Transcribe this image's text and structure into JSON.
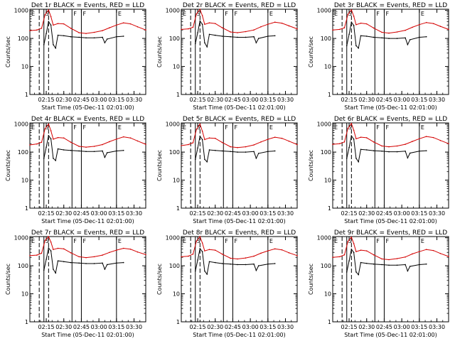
{
  "figure": {
    "y_axis_label": "Counts/sec",
    "x_axis_label": "Start Time (05-Dec-11 02:01:00)",
    "x_tick_labels": [
      "02:15",
      "02:30",
      "02:45",
      "03:00",
      "03:15",
      "03:30"
    ],
    "y_tick_labels": [
      "1",
      "10",
      "100",
      "1000"
    ],
    "event_markers": [
      "E",
      "S",
      "F",
      "F",
      "E"
    ],
    "colors": {
      "events": "#000000",
      "lld": "#d40000",
      "axes": "#000000"
    }
  },
  "chart_data": [
    {
      "type": "line",
      "title": "Det 1r BLACK = Events, RED = LLD",
      "xlabel": "Start Time (05-Dec-11 02:01:00)",
      "ylabel": "Counts/sec",
      "ylim": [
        1,
        1100
      ],
      "x_unit": "minutes after 02:01:00",
      "xlim": [
        0,
        99
      ],
      "y_scale": "log",
      "series": [
        {
          "name": "LLD",
          "x": [
            0,
            6,
            10,
            13,
            16,
            18,
            20,
            24,
            29,
            35,
            42,
            48,
            55,
            62,
            68,
            74,
            80,
            86,
            92,
            99
          ],
          "values": [
            190,
            200,
            230,
            700,
            1050,
            600,
            300,
            340,
            330,
            230,
            160,
            150,
            165,
            190,
            240,
            300,
            360,
            330,
            260,
            200
          ]
        },
        {
          "name": "Events",
          "x": [
            12,
            14,
            16,
            18,
            20,
            22,
            24,
            29,
            35,
            42,
            48,
            55,
            62,
            64,
            66,
            74,
            80
          ],
          "values": [
            60,
            150,
            400,
            300,
            60,
            45,
            130,
            125,
            115,
            110,
            105,
            105,
            110,
            70,
            95,
            115,
            120
          ]
        }
      ]
    },
    {
      "type": "line",
      "title": "Det 2r BLACK = Events, RED = LLD",
      "xlabel": "Start Time (05-Dec-11 02:01:00)",
      "ylabel": "Counts/sec",
      "ylim": [
        1,
        1100
      ],
      "x_unit": "minutes after 02:01:00",
      "xlim": [
        0,
        99
      ],
      "y_scale": "log",
      "series": [
        {
          "name": "LLD",
          "x": [
            0,
            6,
            10,
            13,
            16,
            18,
            20,
            24,
            29,
            35,
            42,
            48,
            55,
            62,
            68,
            74,
            80,
            86,
            92,
            99
          ],
          "values": [
            210,
            220,
            250,
            750,
            1100,
            650,
            320,
            360,
            340,
            240,
            170,
            160,
            175,
            200,
            260,
            320,
            380,
            350,
            280,
            220
          ]
        },
        {
          "name": "Events",
          "x": [
            12,
            14,
            16,
            18,
            20,
            22,
            24,
            29,
            35,
            42,
            48,
            55,
            62,
            64,
            66,
            74,
            80
          ],
          "values": [
            65,
            160,
            420,
            320,
            70,
            50,
            140,
            130,
            120,
            115,
            110,
            110,
            115,
            70,
            100,
            120,
            125
          ]
        }
      ]
    },
    {
      "type": "line",
      "title": "Det 3r BLACK = Events, RED = LLD",
      "xlabel": "Start Time (05-Dec-11 02:01:00)",
      "ylabel": "Counts/sec",
      "ylim": [
        1,
        1100
      ],
      "x_unit": "minutes after 02:01:00",
      "xlim": [
        0,
        99
      ],
      "y_scale": "log",
      "series": [
        {
          "name": "LLD",
          "x": [
            0,
            6,
            10,
            13,
            16,
            18,
            20,
            24,
            29,
            35,
            42,
            48,
            55,
            62,
            68,
            74,
            80,
            86,
            92,
            99
          ],
          "values": [
            200,
            210,
            240,
            720,
            1050,
            620,
            310,
            350,
            330,
            235,
            165,
            155,
            170,
            195,
            250,
            310,
            370,
            340,
            270,
            210
          ]
        },
        {
          "name": "Events",
          "x": [
            12,
            14,
            16,
            18,
            20,
            22,
            24,
            29,
            35,
            42,
            48,
            55,
            62,
            64,
            66,
            74,
            80
          ],
          "values": [
            55,
            140,
            380,
            290,
            55,
            45,
            125,
            120,
            110,
            105,
            100,
            100,
            105,
            60,
            90,
            110,
            115
          ]
        }
      ]
    },
    {
      "type": "line",
      "title": "Det 4r BLACK = Events, RED = LLD",
      "xlabel": "Start Time (05-Dec-11 02:01:00)",
      "ylabel": "Counts/sec",
      "ylim": [
        1,
        1100
      ],
      "x_unit": "minutes after 02:01:00",
      "xlim": [
        0,
        99
      ],
      "y_scale": "log",
      "series": [
        {
          "name": "LLD",
          "x": [
            0,
            6,
            10,
            13,
            16,
            18,
            20,
            24,
            29,
            35,
            42,
            48,
            55,
            62,
            68,
            74,
            80,
            86,
            92,
            99
          ],
          "values": [
            180,
            195,
            225,
            680,
            1000,
            580,
            290,
            330,
            320,
            225,
            160,
            150,
            160,
            185,
            235,
            290,
            350,
            320,
            250,
            190
          ]
        },
        {
          "name": "Events",
          "x": [
            12,
            14,
            16,
            18,
            20,
            22,
            24,
            29,
            35,
            42,
            48,
            55,
            62,
            64,
            66,
            74,
            80
          ],
          "values": [
            60,
            150,
            390,
            300,
            60,
            50,
            130,
            120,
            115,
            110,
            105,
            105,
            110,
            65,
            95,
            110,
            115
          ]
        }
      ]
    },
    {
      "type": "line",
      "title": "Det 5r BLACK = Events, RED = LLD",
      "xlabel": "Start Time (05-Dec-11 02:01:00)",
      "ylabel": "Counts/sec",
      "ylim": [
        1,
        1100
      ],
      "x_unit": "minutes after 02:01:00",
      "xlim": [
        0,
        99
      ],
      "y_scale": "log",
      "series": [
        {
          "name": "LLD",
          "x": [
            0,
            6,
            10,
            13,
            16,
            18,
            20,
            24,
            29,
            35,
            42,
            48,
            55,
            62,
            68,
            74,
            80,
            86,
            92,
            99
          ],
          "values": [
            170,
            185,
            215,
            650,
            1000,
            560,
            280,
            320,
            310,
            220,
            155,
            145,
            155,
            180,
            230,
            285,
            340,
            310,
            245,
            185
          ]
        },
        {
          "name": "Events",
          "x": [
            12,
            14,
            16,
            18,
            20,
            22,
            24,
            29,
            35,
            42,
            48,
            55,
            62,
            64,
            66,
            74,
            80
          ],
          "values": [
            55,
            140,
            370,
            280,
            55,
            45,
            120,
            115,
            110,
            105,
            100,
            100,
            105,
            60,
            90,
            105,
            110
          ]
        }
      ]
    },
    {
      "type": "line",
      "title": "Det 6r BLACK = Events, RED = LLD",
      "xlabel": "Start Time (05-Dec-11 02:01:00)",
      "ylabel": "Counts/sec",
      "ylim": [
        1,
        1100
      ],
      "x_unit": "minutes after 02:01:00",
      "xlim": [
        0,
        99
      ],
      "y_scale": "log",
      "series": [
        {
          "name": "LLD",
          "x": [
            0,
            6,
            10,
            13,
            16,
            18,
            20,
            24,
            29,
            35,
            42,
            48,
            55,
            62,
            68,
            74,
            80,
            86,
            92,
            99
          ],
          "values": [
            190,
            200,
            230,
            700,
            1050,
            600,
            300,
            340,
            325,
            230,
            165,
            155,
            165,
            190,
            240,
            300,
            360,
            330,
            260,
            200
          ]
        },
        {
          "name": "Events",
          "x": [
            12,
            14,
            16,
            18,
            20,
            22,
            24,
            29,
            35,
            42,
            48,
            55,
            62,
            64,
            66,
            74,
            80
          ],
          "values": [
            60,
            145,
            380,
            290,
            60,
            45,
            125,
            120,
            112,
            108,
            103,
            103,
            108,
            62,
            92,
            108,
            112
          ]
        }
      ]
    },
    {
      "type": "line",
      "title": "Det 7r BLACK = Events, RED = LLD",
      "xlabel": "Start Time (05-Dec-11 02:01:00)",
      "ylabel": "Counts/sec",
      "ylim": [
        1,
        1100
      ],
      "x_unit": "minutes after 02:01:00",
      "xlim": [
        0,
        99
      ],
      "y_scale": "log",
      "series": [
        {
          "name": "LLD",
          "x": [
            0,
            6,
            10,
            13,
            16,
            18,
            20,
            24,
            29,
            35,
            42,
            48,
            55,
            62,
            68,
            74,
            80,
            86,
            92,
            99
          ],
          "values": [
            230,
            240,
            280,
            800,
            1100,
            700,
            380,
            420,
            400,
            290,
            210,
            195,
            210,
            240,
            300,
            360,
            420,
            390,
            310,
            250
          ]
        },
        {
          "name": "Events",
          "x": [
            12,
            14,
            16,
            18,
            20,
            22,
            24,
            29,
            35,
            42,
            48,
            55,
            62,
            64,
            66,
            74,
            80
          ],
          "values": [
            70,
            170,
            430,
            340,
            75,
            55,
            150,
            140,
            130,
            125,
            120,
            120,
            125,
            75,
            110,
            125,
            130
          ]
        }
      ]
    },
    {
      "type": "line",
      "title": "Det 8r BLACK = Events, RED = LLD",
      "xlabel": "Start Time (05-Dec-11 02:01:00)",
      "ylabel": "Counts/sec",
      "ylim": [
        1,
        1100
      ],
      "x_unit": "minutes after 02:01:00",
      "xlim": [
        0,
        99
      ],
      "y_scale": "log",
      "series": [
        {
          "name": "LLD",
          "x": [
            0,
            6,
            10,
            13,
            16,
            18,
            20,
            24,
            29,
            35,
            42,
            48,
            55,
            62,
            68,
            74,
            80,
            86,
            92,
            99
          ],
          "values": [
            210,
            220,
            260,
            760,
            1100,
            650,
            340,
            380,
            360,
            260,
            185,
            175,
            190,
            220,
            280,
            340,
            400,
            370,
            290,
            230
          ]
        },
        {
          "name": "Events",
          "x": [
            12,
            14,
            16,
            18,
            20,
            22,
            24,
            29,
            35,
            42,
            48,
            55,
            62,
            64,
            66,
            74,
            80
          ],
          "values": [
            65,
            160,
            410,
            320,
            65,
            50,
            140,
            130,
            120,
            115,
            110,
            110,
            115,
            68,
            100,
            115,
            120
          ]
        }
      ]
    },
    {
      "type": "line",
      "title": "Det 9r BLACK = Events, RED = LLD",
      "xlabel": "Start Time (05-Dec-11 02:01:00)",
      "ylabel": "Counts/sec",
      "ylim": [
        1,
        1100
      ],
      "x_unit": "minutes after 02:01:00",
      "xlim": [
        0,
        99
      ],
      "y_scale": "log",
      "series": [
        {
          "name": "LLD",
          "x": [
            0,
            6,
            10,
            13,
            16,
            18,
            20,
            24,
            29,
            35,
            42,
            48,
            55,
            62,
            68,
            74,
            80,
            86,
            92,
            99
          ],
          "values": [
            200,
            210,
            245,
            730,
            1050,
            620,
            320,
            360,
            340,
            245,
            175,
            165,
            180,
            205,
            265,
            320,
            380,
            350,
            275,
            215
          ]
        },
        {
          "name": "Events",
          "x": [
            12,
            14,
            16,
            18,
            20,
            22,
            24,
            29,
            35,
            42,
            48,
            55,
            62,
            64,
            66,
            74,
            80
          ],
          "values": [
            60,
            150,
            390,
            300,
            60,
            48,
            130,
            122,
            115,
            110,
            105,
            105,
            110,
            65,
            95,
            110,
            115
          ]
        }
      ]
    }
  ]
}
